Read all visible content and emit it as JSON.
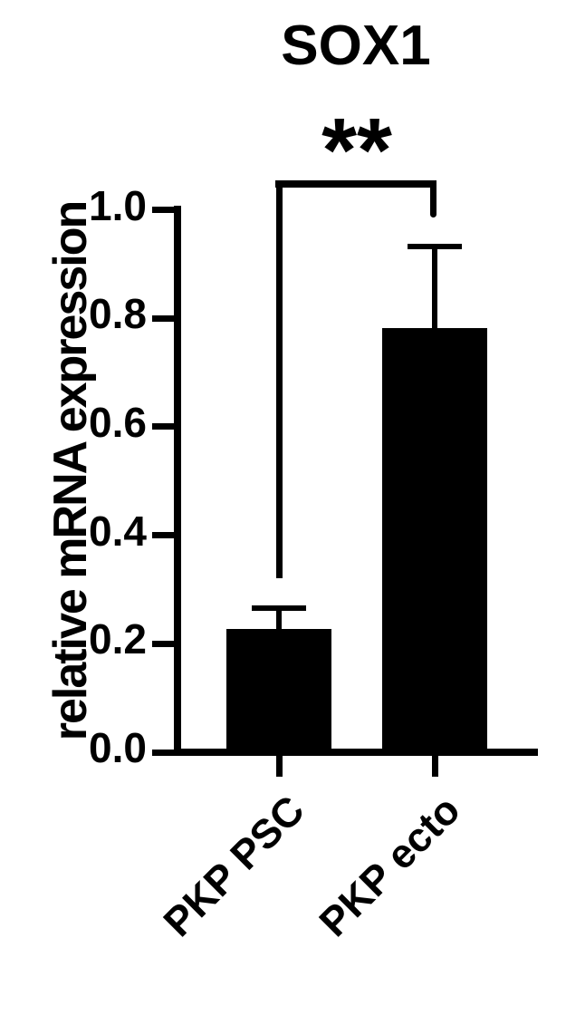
{
  "figure": {
    "background": "#ffffff",
    "ink_color": "#000000"
  },
  "chart_data": {
    "type": "bar",
    "title": "SOX1",
    "xlabel": "",
    "ylabel": "relative mRNA expression",
    "categories": [
      "PKP PSC",
      "PKP ecto"
    ],
    "values": [
      0.228,
      0.782
    ],
    "error_upper": [
      0.266,
      0.932
    ],
    "error_bars": "upper SD whiskers with caps",
    "bar_color": "#000000",
    "yticks": [
      "0.0",
      "0.2",
      "0.4",
      "0.6",
      "0.8",
      "1.0"
    ],
    "ylim": [
      0.0,
      1.0
    ],
    "grid": false,
    "legend": "none",
    "significance": {
      "label": "**",
      "between": [
        "PKP PSC",
        "PKP ecto"
      ]
    }
  }
}
